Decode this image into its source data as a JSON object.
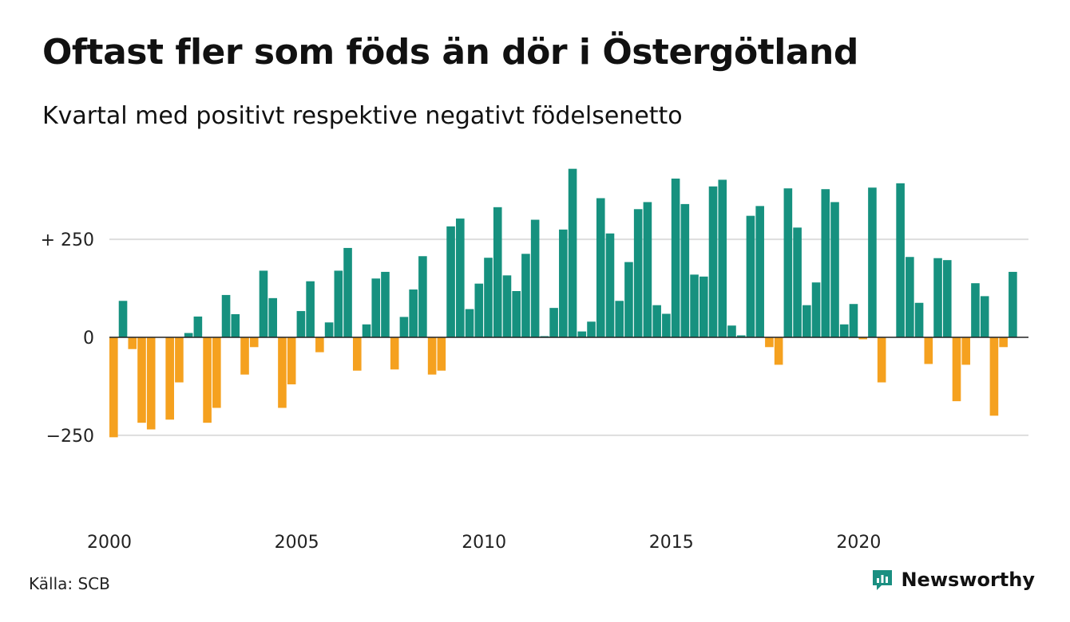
{
  "title": "Oftast fler som föds än dör i Östergötland",
  "subtitle": "Kvartal med positivt respektive negativt födelsenetto",
  "source": "Källa: SCB",
  "brand": {
    "name": "Newsworthy",
    "color": "#1a8f81"
  },
  "colors": {
    "positive": "#16917f",
    "negative": "#f5a11f",
    "grid": "#dddddd",
    "zero_line": "#222222"
  },
  "chart_data": {
    "type": "bar",
    "title": "Oftast fler som föds än dör i Östergötland",
    "subtitle": "Kvartal med positivt respektive negativt födelsenetto",
    "xlabel": "",
    "ylabel": "",
    "ylim": [
      -350,
      440
    ],
    "grid": true,
    "legend": "none",
    "y_ticks": [
      {
        "value": 250,
        "label": "+ 250"
      },
      {
        "value": 0,
        "label": "0"
      },
      {
        "value": -250,
        "label": "−250"
      }
    ],
    "x_ticks": [
      {
        "value": 2000,
        "label": "2000"
      },
      {
        "value": 2005,
        "label": "2005"
      },
      {
        "value": 2010,
        "label": "2010"
      },
      {
        "value": 2015,
        "label": "2015"
      },
      {
        "value": 2020,
        "label": "2020"
      }
    ],
    "x_start": 2000,
    "x_end": 2024.75,
    "values": [
      -255,
      93,
      -30,
      -218,
      -235,
      null,
      -210,
      -115,
      11,
      53,
      -218,
      -180,
      108,
      59,
      -95,
      -25,
      170,
      100,
      -180,
      -120,
      67,
      143,
      -38,
      38,
      170,
      228,
      -85,
      33,
      150,
      167,
      -82,
      52,
      122,
      207,
      -95,
      -85,
      283,
      303,
      72,
      137,
      203,
      332,
      158,
      118,
      213,
      300,
      3,
      75,
      275,
      430,
      15,
      40,
      355,
      265,
      93,
      192,
      327,
      345,
      82,
      60,
      405,
      340,
      160,
      155,
      385,
      402,
      30,
      5,
      310,
      335,
      -25,
      -70,
      380,
      280,
      82,
      140,
      378,
      345,
      33,
      85,
      -5,
      382,
      -115,
      null,
      393,
      205,
      88,
      -68,
      202,
      197,
      -163,
      -70,
      138,
      105,
      -200,
      -25,
      167
    ]
  }
}
